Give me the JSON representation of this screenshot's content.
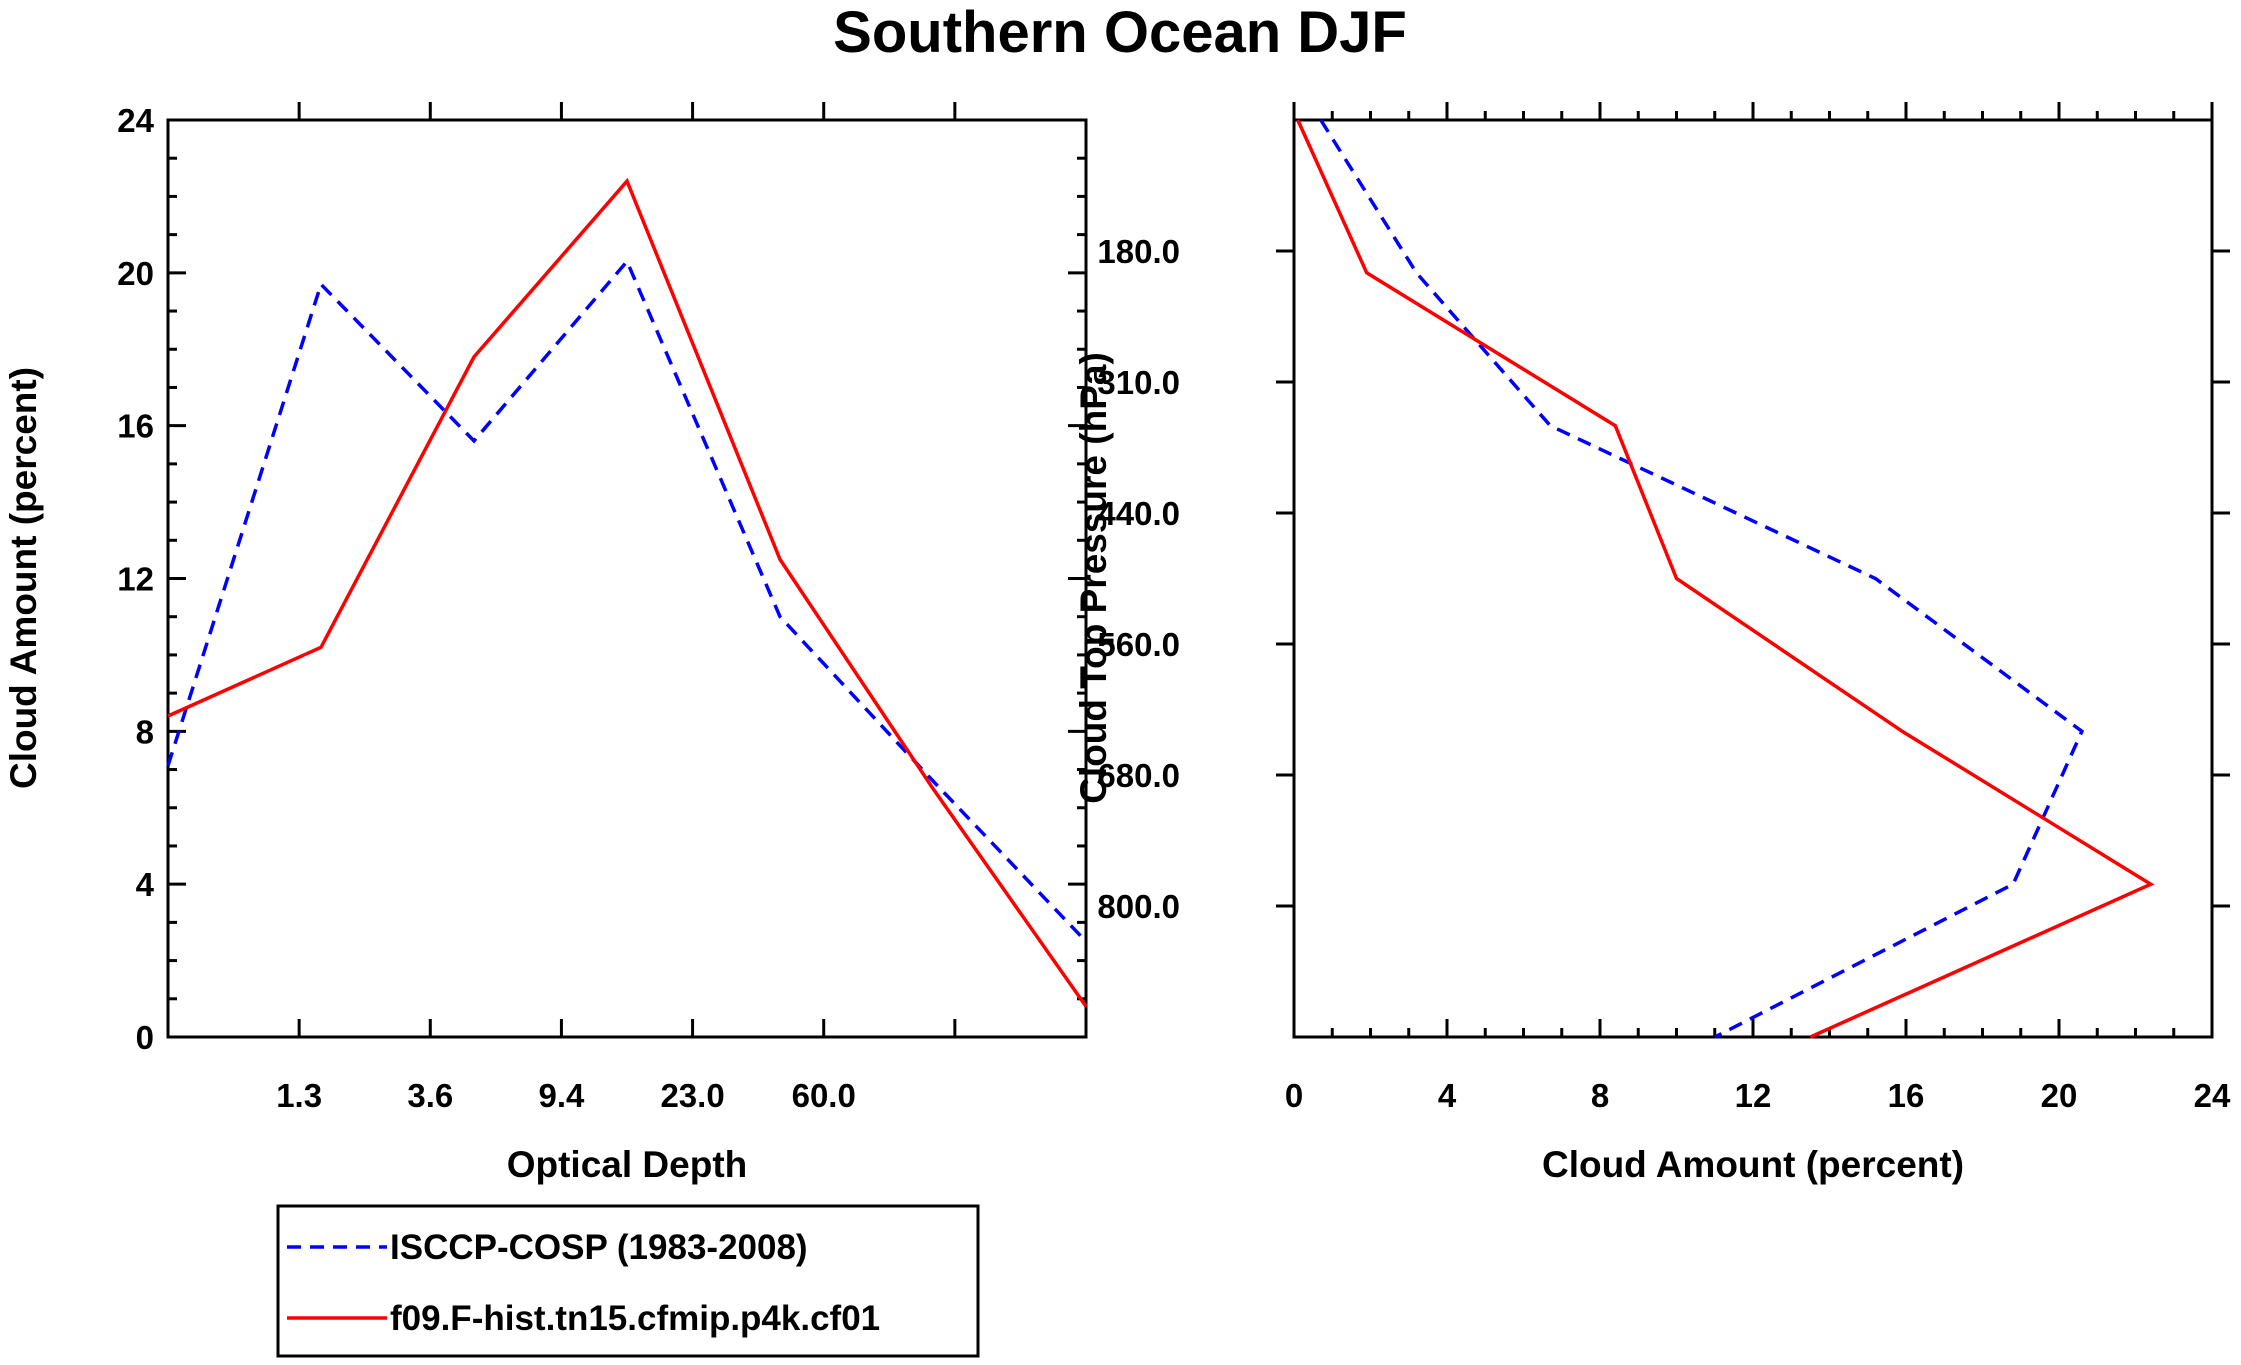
{
  "title": "Southern Ocean DJF",
  "chart_data": [
    {
      "type": "line",
      "xlabel": "Optical Depth",
      "ylabel": "Cloud Amount (percent)",
      "x_tick_labels": [
        "1.3",
        "3.6",
        "9.4",
        "23.0",
        "60.0"
      ],
      "y_tick_labels": [
        "0",
        "4",
        "8",
        "12",
        "16",
        "20",
        "24"
      ],
      "ylim": [
        0,
        24
      ],
      "x_bins": 7,
      "series": [
        {
          "name": "ISCCP-COSP (1983-2008)",
          "color": "#0000ff",
          "style": "dashed",
          "values": [
            7.1,
            19.7,
            15.6,
            20.3,
            11.0,
            6.7,
            2.5
          ]
        },
        {
          "name": "f09.F-hist.tn15.cfmip.p4k.cf01",
          "color": "#ff0000",
          "style": "solid",
          "values": [
            8.4,
            10.2,
            17.8,
            22.4,
            12.5,
            6.5,
            0.8
          ]
        }
      ]
    },
    {
      "type": "line",
      "xlabel": "Cloud Amount (percent)",
      "ylabel": "Cloud Top Pressure (hPa)",
      "x_tick_labels": [
        "0",
        "4",
        "8",
        "12",
        "16",
        "20",
        "24"
      ],
      "y_tick_labels": [
        "180.0",
        "310.0",
        "440.0",
        "560.0",
        "680.0",
        "800.0"
      ],
      "xlim": [
        0,
        24
      ],
      "y_bins": 7,
      "series": [
        {
          "name": "ISCCP-COSP (1983-2008)",
          "color": "#0000ff",
          "style": "dashed",
          "values": [
            0.7,
            3.2,
            6.7,
            15.2,
            20.6,
            18.8,
            11.0
          ]
        },
        {
          "name": "f09.F-hist.tn15.cfmip.p4k.cf01",
          "color": "#ff0000",
          "style": "solid",
          "values": [
            0.1,
            1.9,
            8.4,
            10.0,
            15.9,
            22.4,
            13.5
          ]
        }
      ]
    }
  ],
  "legend": [
    {
      "label": "ISCCP-COSP (1983-2008)",
      "color": "#0000ff",
      "style": "dashed"
    },
    {
      "label": "f09.F-hist.tn15.cfmip.p4k.cf01",
      "color": "#ff0000",
      "style": "solid"
    }
  ]
}
